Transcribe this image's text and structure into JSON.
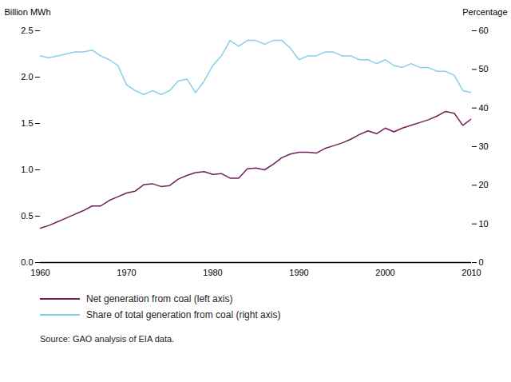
{
  "chart_data": {
    "type": "line",
    "x": [
      1960,
      1961,
      1962,
      1963,
      1964,
      1965,
      1966,
      1967,
      1968,
      1969,
      1970,
      1971,
      1972,
      1973,
      1974,
      1975,
      1976,
      1977,
      1978,
      1979,
      1980,
      1981,
      1982,
      1983,
      1984,
      1985,
      1986,
      1987,
      1988,
      1989,
      1990,
      1991,
      1992,
      1993,
      1994,
      1995,
      1996,
      1997,
      1998,
      1999,
      2000,
      2001,
      2002,
      2003,
      2004,
      2005,
      2006,
      2007,
      2008,
      2009,
      2010
    ],
    "series": [
      {
        "name": "Net generation from coal (left axis)",
        "color": "#722057",
        "values": [
          0.37,
          0.4,
          0.44,
          0.48,
          0.52,
          0.56,
          0.61,
          0.61,
          0.67,
          0.71,
          0.75,
          0.77,
          0.84,
          0.85,
          0.82,
          0.83,
          0.9,
          0.94,
          0.97,
          0.98,
          0.95,
          0.96,
          0.91,
          0.91,
          1.01,
          1.02,
          1.0,
          1.06,
          1.13,
          1.17,
          1.19,
          1.19,
          1.18,
          1.23,
          1.26,
          1.29,
          1.33,
          1.38,
          1.42,
          1.39,
          1.45,
          1.41,
          1.45,
          1.48,
          1.51,
          1.54,
          1.58,
          1.63,
          1.61,
          1.48,
          1.55
        ]
      },
      {
        "name": "Share of total generation from coal (right axis)",
        "color": "#87CEEB",
        "axis": "y2",
        "values": [
          53.5,
          53.0,
          53.5,
          54.0,
          54.5,
          54.5,
          55.0,
          53.5,
          52.5,
          51.0,
          46.0,
          44.5,
          43.5,
          44.5,
          43.5,
          44.5,
          47.0,
          47.5,
          44.0,
          47.0,
          51.0,
          53.5,
          57.5,
          56.0,
          57.5,
          57.5,
          56.5,
          57.5,
          57.5,
          55.5,
          52.5,
          53.5,
          53.5,
          54.5,
          54.5,
          53.5,
          53.5,
          52.5,
          52.5,
          51.5,
          52.5,
          51.0,
          50.5,
          51.5,
          50.5,
          50.5,
          49.5,
          49.5,
          48.5,
          44.5,
          44.0
        ]
      }
    ],
    "xlim": [
      1960,
      2010
    ],
    "xticks": [
      1960,
      1970,
      1980,
      1990,
      2000,
      2010
    ],
    "ylim": [
      0.0,
      2.5
    ],
    "yticks": [
      {
        "value": 0,
        "label": "0.0"
      },
      0.5,
      {
        "value": 1,
        "label": "1.0"
      },
      1.5,
      {
        "value": 2,
        "label": "2.0"
      },
      2.5
    ],
    "y2lim": [
      0,
      60
    ],
    "y2ticks": [
      0,
      10,
      20,
      30,
      40,
      50,
      60
    ],
    "ylabel": "Billion MWh",
    "y2label": "Percentage",
    "source": "Source: GAO analysis of EIA data.",
    "legend": "bottom",
    "grid": false
  }
}
